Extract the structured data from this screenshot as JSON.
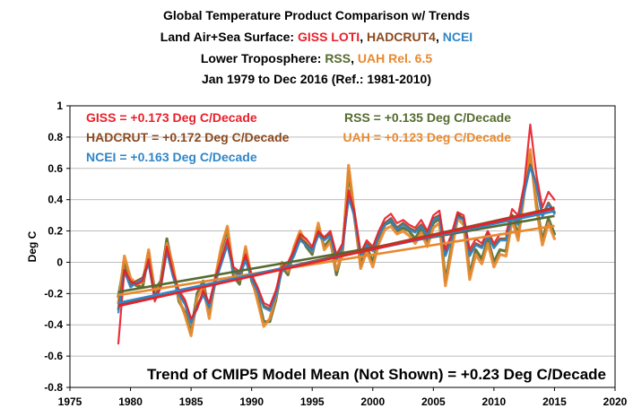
{
  "colors": {
    "giss": "#e8202a",
    "hadcrut": "#8b4a1f",
    "ncei": "#2f86c8",
    "rss": "#556b2f",
    "uah": "#e8892e",
    "gridline": "#bdbdbd",
    "black": "#000000"
  },
  "chart_data": {
    "type": "line",
    "title_lines": [
      [
        {
          "text": "Global Temperature Product Comparison w/ Trends",
          "color": "#000000"
        }
      ],
      [
        {
          "text": "Land Air+Sea Surface: ",
          "color": "#000000"
        },
        {
          "text": "GISS LOTI",
          "color": "#e8202a"
        },
        {
          "text": ", ",
          "color": "#000000"
        },
        {
          "text": "HADCRUT4",
          "color": "#8b4a1f"
        },
        {
          "text": ", ",
          "color": "#000000"
        },
        {
          "text": "NCEI",
          "color": "#2f86c8"
        }
      ],
      [
        {
          "text": "Lower Troposphere: ",
          "color": "#000000"
        },
        {
          "text": "RSS",
          "color": "#556b2f"
        },
        {
          "text": ", ",
          "color": "#000000"
        },
        {
          "text": "UAH Rel. 6.5",
          "color": "#e8892e"
        }
      ],
      [
        {
          "text": "Jan 1979 to Dec 2016 (Ref.: 1981-2010)",
          "color": "#000000"
        }
      ]
    ],
    "ylabel": "Deg C",
    "xlabel": "",
    "xlim": [
      1975,
      2020
    ],
    "ylim": [
      -0.8,
      1.0
    ],
    "xticks": [
      1975,
      1980,
      1985,
      1990,
      1995,
      2000,
      2005,
      2010,
      2015,
      2020
    ],
    "yticks": [
      -0.8,
      -0.6,
      -0.4,
      -0.2,
      0,
      0.2,
      0.4,
      0.6,
      0.8,
      1
    ],
    "ytick_labels": [
      "-0.8",
      "-0.6",
      "-0.4",
      "-0.2",
      "0",
      "0.2",
      "0.4",
      "0.6",
      "0.8",
      "1"
    ],
    "grid": "horizontal",
    "trend_labels": [
      {
        "text": "GISS = +0.173 Deg C/Decade",
        "series": "giss",
        "anchor": "left"
      },
      {
        "text": "HADCRUT = +0.172 Deg C/Decade",
        "series": "hadcrut",
        "anchor": "left"
      },
      {
        "text": "NCEI = +0.163 Deg C/Decade",
        "series": "ncei",
        "anchor": "left"
      },
      {
        "text": "RSS = +0.135 Deg C/Decade",
        "series": "rss",
        "anchor": "right"
      },
      {
        "text": "UAH = +0.123 Deg C/Decade",
        "series": "uah",
        "anchor": "right"
      }
    ],
    "footnote": "Trend of CMIP5 Model Mean (Not Shown) = +0.23 Deg C/Decade",
    "x_start": 1979.0,
    "x_step": 0.5,
    "series": [
      {
        "name": "RSS",
        "key": "rss",
        "values": [
          -0.22,
          0.0,
          -0.12,
          -0.15,
          -0.16,
          0.06,
          -0.18,
          -0.12,
          0.15,
          -0.04,
          -0.25,
          -0.32,
          -0.45,
          -0.2,
          -0.12,
          -0.33,
          -0.12,
          0.08,
          0.21,
          -0.09,
          -0.14,
          0.08,
          -0.12,
          -0.22,
          -0.38,
          -0.38,
          -0.24,
          -0.03,
          -0.08,
          0.08,
          0.18,
          0.1,
          0.05,
          0.22,
          0.1,
          0.15,
          -0.08,
          0.07,
          0.58,
          0.28,
          -0.02,
          0.1,
          0.0,
          0.15,
          0.24,
          0.26,
          0.2,
          0.22,
          0.2,
          0.15,
          0.22,
          0.13,
          0.25,
          0.28,
          -0.12,
          0.1,
          0.31,
          0.27,
          -0.08,
          0.08,
          0.02,
          0.15,
          0.0,
          0.08,
          0.07,
          0.3,
          0.17,
          0.46,
          0.69,
          0.38,
          0.14,
          0.28,
          0.18
        ],
        "trend": [
          -0.19,
          0.135
        ]
      },
      {
        "name": "UAH",
        "key": "uah",
        "values": [
          -0.26,
          0.04,
          -0.1,
          -0.14,
          -0.13,
          0.08,
          -0.2,
          -0.14,
          0.12,
          -0.02,
          -0.23,
          -0.34,
          -0.47,
          -0.23,
          -0.15,
          -0.36,
          -0.1,
          0.1,
          0.23,
          -0.06,
          -0.11,
          0.1,
          -0.1,
          -0.25,
          -0.41,
          -0.36,
          -0.22,
          0.0,
          -0.06,
          0.1,
          0.2,
          0.12,
          0.07,
          0.25,
          0.08,
          0.13,
          -0.05,
          0.05,
          0.62,
          0.3,
          -0.04,
          0.07,
          -0.03,
          0.12,
          0.21,
          0.23,
          0.18,
          0.2,
          0.17,
          0.12,
          0.19,
          0.1,
          0.22,
          0.25,
          -0.15,
          0.07,
          0.28,
          0.24,
          -0.11,
          0.05,
          -0.01,
          0.12,
          -0.03,
          0.05,
          0.04,
          0.27,
          0.14,
          0.44,
          0.72,
          0.35,
          0.11,
          0.25,
          0.15
        ],
        "trend": [
          -0.21,
          0.123
        ]
      },
      {
        "name": "HADCRUT4",
        "key": "hadcrut",
        "values": [
          -0.3,
          -0.05,
          -0.15,
          -0.12,
          -0.1,
          0.0,
          -0.22,
          -0.15,
          0.08,
          -0.08,
          -0.2,
          -0.26,
          -0.38,
          -0.28,
          -0.2,
          -0.28,
          -0.12,
          0.0,
          0.12,
          -0.05,
          -0.08,
          0.02,
          -0.1,
          -0.18,
          -0.28,
          -0.3,
          -0.2,
          -0.05,
          -0.02,
          0.05,
          0.15,
          0.12,
          0.08,
          0.18,
          0.15,
          0.18,
          0.02,
          0.1,
          0.42,
          0.3,
          0.05,
          0.12,
          0.08,
          0.18,
          0.25,
          0.28,
          0.22,
          0.25,
          0.22,
          0.2,
          0.24,
          0.18,
          0.28,
          0.3,
          0.05,
          0.15,
          0.3,
          0.28,
          0.05,
          0.12,
          0.1,
          0.18,
          0.1,
          0.15,
          0.15,
          0.3,
          0.25,
          0.45,
          0.62,
          0.5,
          0.3,
          0.38,
          0.32
        ],
        "trend": [
          -0.27,
          0.172
        ]
      },
      {
        "name": "NCEI",
        "key": "ncei",
        "values": [
          -0.32,
          -0.06,
          -0.16,
          -0.13,
          -0.11,
          -0.01,
          -0.23,
          -0.16,
          0.07,
          -0.09,
          -0.21,
          -0.27,
          -0.39,
          -0.29,
          -0.21,
          -0.29,
          -0.13,
          -0.01,
          0.11,
          -0.06,
          -0.09,
          0.01,
          -0.11,
          -0.19,
          -0.29,
          -0.31,
          -0.21,
          -0.06,
          -0.03,
          0.04,
          0.14,
          0.11,
          0.07,
          0.17,
          0.14,
          0.17,
          0.01,
          0.09,
          0.41,
          0.29,
          0.04,
          0.11,
          0.07,
          0.17,
          0.24,
          0.27,
          0.21,
          0.24,
          0.21,
          0.19,
          0.23,
          0.17,
          0.27,
          0.29,
          0.04,
          0.14,
          0.29,
          0.27,
          0.04,
          0.11,
          0.09,
          0.17,
          0.09,
          0.14,
          0.14,
          0.29,
          0.24,
          0.44,
          0.61,
          0.49,
          0.29,
          0.37,
          0.31
        ],
        "trend": [
          -0.26,
          0.163
        ]
      },
      {
        "name": "GISS LOTI",
        "key": "giss",
        "values": [
          -0.52,
          -0.05,
          -0.12,
          -0.14,
          -0.12,
          0.02,
          -0.25,
          -0.16,
          0.1,
          -0.06,
          -0.18,
          -0.24,
          -0.36,
          -0.3,
          -0.18,
          -0.26,
          -0.1,
          0.02,
          0.15,
          -0.03,
          -0.06,
          0.05,
          -0.08,
          -0.16,
          -0.26,
          -0.28,
          -0.18,
          -0.03,
          0.0,
          0.08,
          0.18,
          0.15,
          0.1,
          0.2,
          0.16,
          0.2,
          0.05,
          0.12,
          0.46,
          0.32,
          0.06,
          0.14,
          0.1,
          0.2,
          0.28,
          0.31,
          0.25,
          0.27,
          0.24,
          0.22,
          0.27,
          0.2,
          0.3,
          0.33,
          0.08,
          0.18,
          0.32,
          0.3,
          0.08,
          0.15,
          0.12,
          0.2,
          0.12,
          0.18,
          0.18,
          0.34,
          0.3,
          0.5,
          0.88,
          0.56,
          0.35,
          0.45,
          0.4
        ],
        "trend": [
          -0.28,
          0.173
        ]
      }
    ]
  }
}
